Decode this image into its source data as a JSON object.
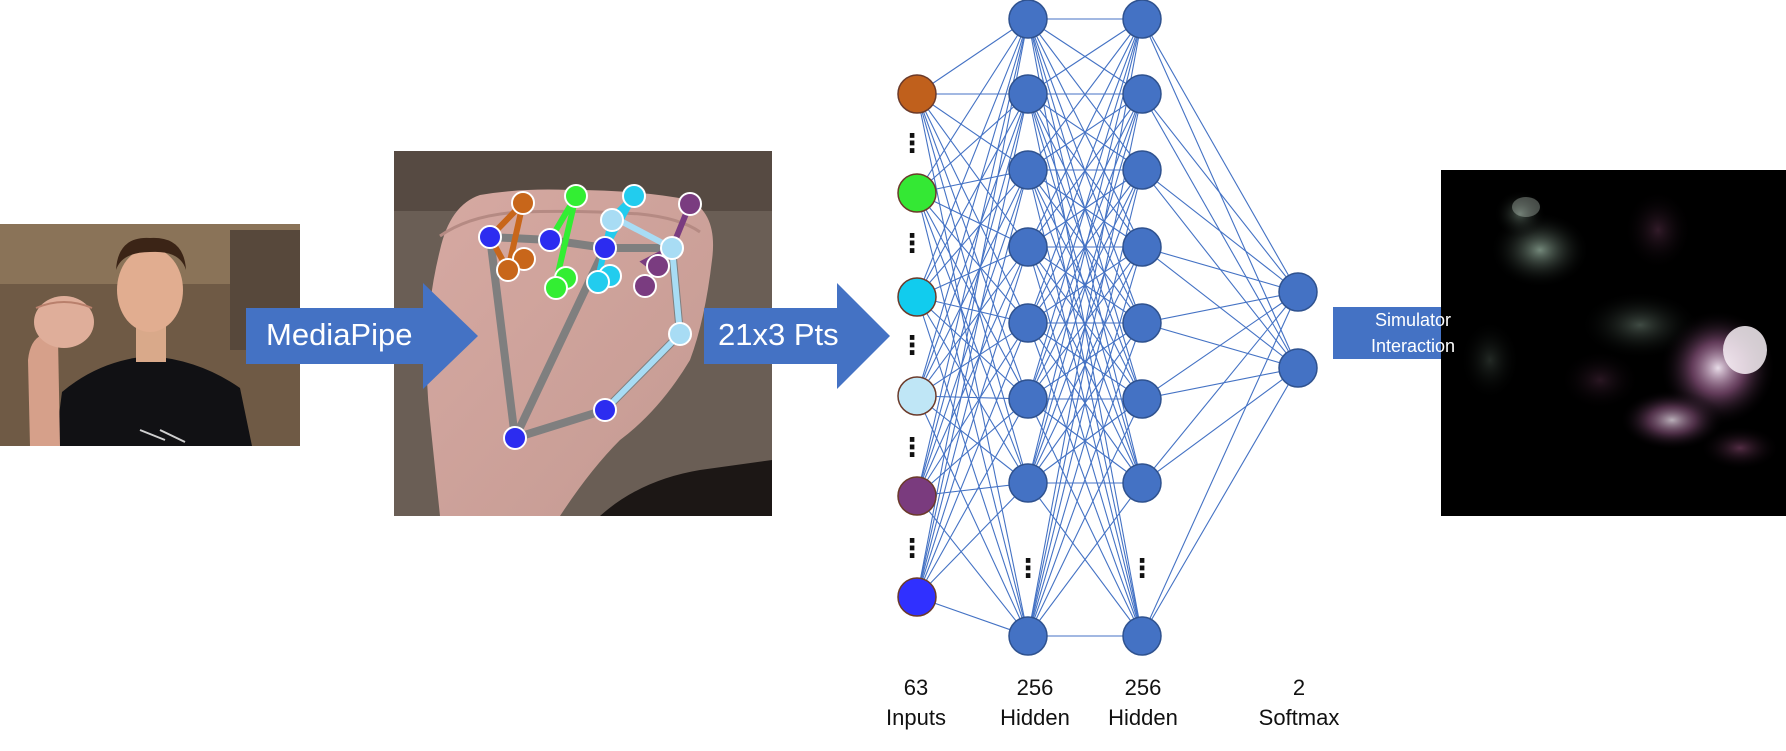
{
  "pipeline": {
    "arrows": [
      {
        "label": "MediaPipe"
      },
      {
        "label": "21x3 Pts"
      },
      {
        "label_line1": "Simulator",
        "label_line2": "Interaction"
      }
    ]
  },
  "network": {
    "layers": [
      {
        "count": "63",
        "name": "Inputs"
      },
      {
        "count": "256",
        "name": "Hidden"
      },
      {
        "count": "256",
        "name": "Hidden"
      },
      {
        "count": "2",
        "name": "Softmax"
      }
    ],
    "input_node_colors": [
      "#c0601c",
      "#34e834",
      "#11ccee",
      "#bfe6f6",
      "#7a3b7e",
      "#3030ff"
    ],
    "hidden_node_color": "#4472c4",
    "edge_color": "#4472c4",
    "ellipsis": "⋮"
  },
  "colors": {
    "arrow_fill": "#4472c4",
    "skeleton_gray": "#7f7f7f",
    "landmark_blue": "#2c2cf0",
    "landmark_orange": "#c8661a",
    "landmark_green": "#33ee33",
    "landmark_cyan": "#22ccee",
    "landmark_lightblue": "#a8dcf4",
    "landmark_purple": "#7a3c80"
  }
}
